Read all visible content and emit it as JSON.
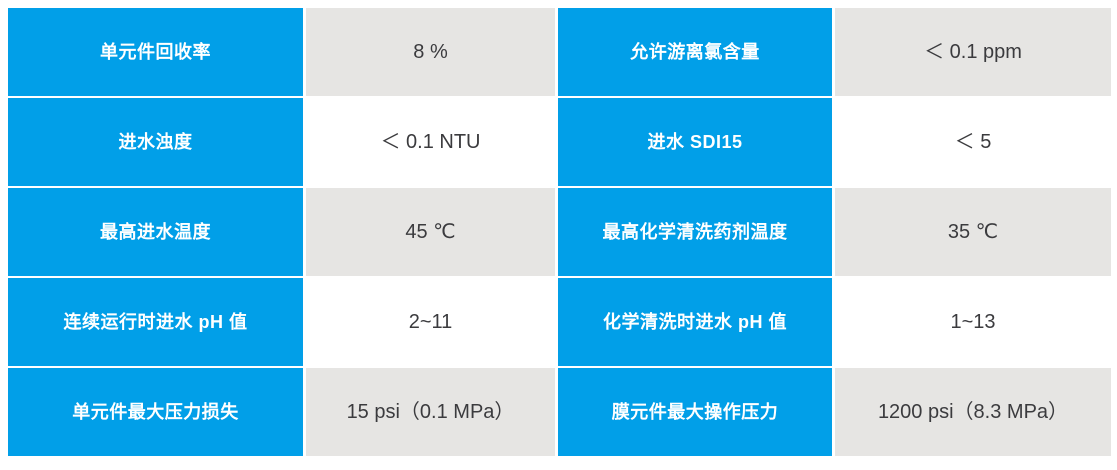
{
  "table": {
    "description": "membrane-operating-specs-table",
    "colors": {
      "label_bg": "#019FE8",
      "value_bg_shaded": "#E6E5E3",
      "value_bg_plain": "#FFFFFF",
      "label_text": "#FFFFFF",
      "value_text": "#3B3B3E"
    },
    "rows": [
      [
        "单元件回收率",
        "8 %",
        "允许游离氯含量",
        "＜ 0.1 ppm"
      ],
      [
        "进水浊度",
        "＜ 0.1 NTU",
        "进水 SDI15",
        "＜ 5"
      ],
      [
        "最高进水温度",
        "45 ℃",
        "最高化学清洗药剂温度",
        "35 ℃"
      ],
      [
        "连续运行时进水 pH 值",
        "2~11",
        "化学清洗时进水 pH 值",
        "1~13"
      ],
      [
        "单元件最大压力损失",
        "15 psi（0.1 MPa）",
        "膜元件最大操作压力",
        "1200 psi（8.3 MPa）"
      ]
    ]
  }
}
